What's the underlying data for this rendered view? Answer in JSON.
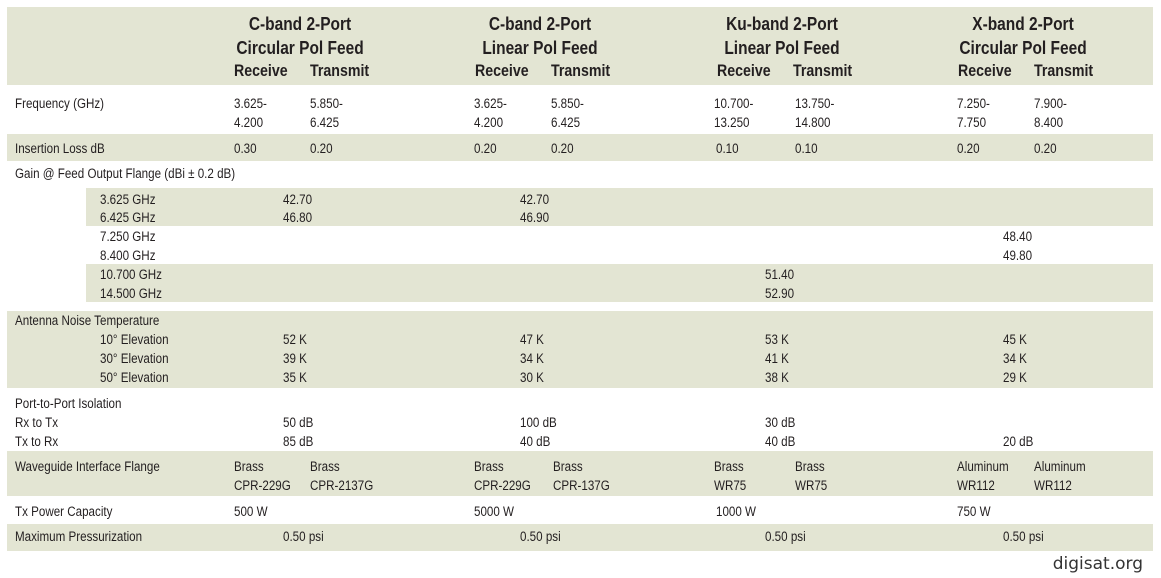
{
  "columns": [
    {
      "title1": "C-band 2-Port",
      "title2": "Circular Pol Feed",
      "receive": "Receive",
      "transmit": "Transmit"
    },
    {
      "title1": "C-band 2-Port",
      "title2": "Linear Pol Feed",
      "receive": "Receive",
      "transmit": "Transmit"
    },
    {
      "title1": "Ku-band 2-Port",
      "title2": "Linear Pol Feed",
      "receive": "Receive",
      "transmit": "Transmit"
    },
    {
      "title1": "X-band 2-Port",
      "title2": "Circular Pol Feed",
      "receive": "Receive",
      "transmit": "Transmit"
    }
  ],
  "frequency": {
    "label": "Frequency (GHz)",
    "values": [
      [
        "3.625-\n4.200",
        "5.850-\n6.425"
      ],
      [
        "3.625-\n4.200",
        "5.850-\n6.425"
      ],
      [
        "10.700-\n13.250",
        "13.750-\n14.800"
      ],
      [
        "7.250-\n7.750",
        "7.900-\n8.400"
      ]
    ]
  },
  "insertion_loss": {
    "label": "Insertion Loss dB",
    "values": [
      [
        "0.30",
        "0.20"
      ],
      [
        "0.20",
        "0.20"
      ],
      [
        "0.10",
        "0.10"
      ],
      [
        "0.20",
        "0.20"
      ]
    ]
  },
  "gain": {
    "label": "Gain @ Feed Output Flange (dBi ± 0.2 dB)",
    "rows": [
      {
        "freq": "3.625 GHz",
        "values": [
          "42.70",
          "42.70",
          "",
          ""
        ]
      },
      {
        "freq": "6.425 GHz",
        "values": [
          "46.80",
          "46.90",
          "",
          ""
        ]
      },
      {
        "freq": "7.250 GHz",
        "values": [
          "",
          "",
          "",
          "48.40"
        ]
      },
      {
        "freq": "8.400 GHz",
        "values": [
          "",
          "",
          "",
          "49.80"
        ]
      },
      {
        "freq": "10.700 GHz",
        "values": [
          "",
          "",
          "51.40",
          ""
        ]
      },
      {
        "freq": "14.500 GHz",
        "values": [
          "",
          "",
          "52.90",
          ""
        ]
      }
    ]
  },
  "noise": {
    "label": "Antenna Noise Temperature",
    "rows": [
      {
        "elev": "10° Elevation",
        "values": [
          "52 K",
          "47 K",
          "53 K",
          "45 K"
        ]
      },
      {
        "elev": "30° Elevation",
        "values": [
          "39 K",
          "34 K",
          "41 K",
          "34 K"
        ]
      },
      {
        "elev": "50° Elevation",
        "values": [
          "35 K",
          "30 K",
          "38 K",
          "29 K"
        ]
      }
    ]
  },
  "isolation": {
    "label": "Port-to-Port Isolation",
    "rows": [
      {
        "dir": "Rx to Tx",
        "values": [
          "50 dB",
          "100 dB",
          "30 dB",
          ""
        ]
      },
      {
        "dir": "Tx to Rx",
        "values": [
          "85 dB",
          "40 dB",
          "40 dB",
          "20 dB"
        ]
      }
    ]
  },
  "flange": {
    "label": "Waveguide Interface Flange",
    "values": [
      [
        "Brass\nCPR-229G",
        "Brass\nCPR-2137G"
      ],
      [
        "Brass\nCPR-229G",
        "Brass\nCPR-137G"
      ],
      [
        "Brass\nWR75",
        "Brass\nWR75"
      ],
      [
        "Aluminum\nWR112",
        "Aluminum\nWR112"
      ]
    ]
  },
  "power": {
    "label": "Tx Power Capacity",
    "values": [
      "500 W",
      "5000 W",
      "1000 W",
      "750 W"
    ]
  },
  "pressure": {
    "label": "Maximum Pressurization",
    "values": [
      "0.50 psi",
      "0.50 psi",
      "0.50 psi",
      "0.50 psi"
    ]
  },
  "watermark": "digisat.org",
  "colors": {
    "band": "#e3e5d3",
    "text": "#231f20"
  }
}
